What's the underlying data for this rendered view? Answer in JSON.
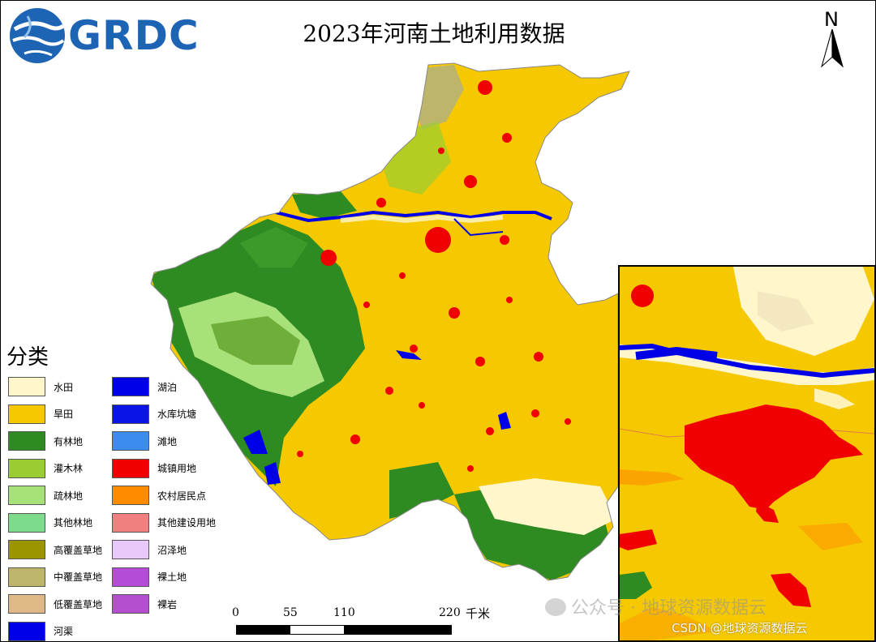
{
  "header": {
    "logo_text": "GRDC",
    "title": "2023年河南土地利用数据",
    "north_label": "N"
  },
  "legend": {
    "title": "分类",
    "items": [
      {
        "label": "水田",
        "color": "#fff6cc"
      },
      {
        "label": "旱田",
        "color": "#f5c800"
      },
      {
        "label": "有林地",
        "color": "#2e8b22"
      },
      {
        "label": "灌木林",
        "color": "#9acd32"
      },
      {
        "label": "疏林地",
        "color": "#a8e07a"
      },
      {
        "label": "其他林地",
        "color": "#7ddc8c"
      },
      {
        "label": "高覆盖草地",
        "color": "#9b9600"
      },
      {
        "label": "中覆盖草地",
        "color": "#bdb56a"
      },
      {
        "label": "低覆盖草地",
        "color": "#deb887"
      },
      {
        "label": "河渠",
        "color": "#0000e6"
      },
      {
        "label": "湖泊",
        "color": "#0000e6"
      },
      {
        "label": "水库坑塘",
        "color": "#0a14e6"
      },
      {
        "label": "滩地",
        "color": "#3c8cf0"
      },
      {
        "label": "城镇用地",
        "color": "#f00000"
      },
      {
        "label": "农村居民点",
        "color": "#ff8c00"
      },
      {
        "label": "其他建设用地",
        "color": "#f08080"
      },
      {
        "label": "沼泽地",
        "color": "#e8c8f8"
      },
      {
        "label": "裸土地",
        "color": "#b44cd8"
      },
      {
        "label": "裸岩",
        "color": "#b450d0"
      }
    ]
  },
  "scale_bar": {
    "ticks": [
      "0",
      "55",
      "110",
      "220"
    ],
    "unit": "千米"
  },
  "watermark": {
    "wechat": "公众号 · 地球资源数据云",
    "credit": "CSDN @地球资源数据云"
  }
}
